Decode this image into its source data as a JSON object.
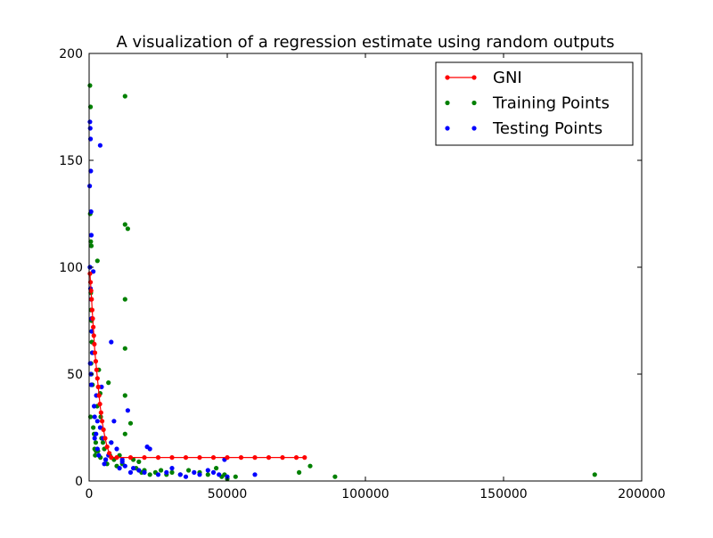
{
  "chart_data": {
    "type": "scatter",
    "title": "A visualization of a regression estimate using random outputs",
    "xlabel": "",
    "ylabel": "",
    "xlim": [
      0,
      200000
    ],
    "ylim": [
      0,
      200
    ],
    "x_ticks": [
      "0",
      "50000",
      "100000",
      "150000",
      "200000"
    ],
    "y_ticks": [
      "0",
      "50",
      "100",
      "150",
      "200"
    ],
    "grid": false,
    "legend_position": "top-right",
    "series": [
      {
        "name": "GNI",
        "style": "line-marker",
        "color": "#ff0000",
        "x": [
          300,
          500,
          700,
          900,
          1100,
          1300,
          1500,
          1700,
          1900,
          2100,
          2400,
          2700,
          3000,
          3300,
          3600,
          3900,
          4300,
          4700,
          5200,
          5800,
          6500,
          7300,
          8000,
          10000,
          15000,
          20000,
          25000,
          30000,
          35000,
          40000,
          45000,
          50000,
          55000,
          60000,
          65000,
          70000,
          75000,
          78000
        ],
        "y": [
          97,
          93,
          89,
          85,
          80,
          76,
          72,
          68,
          64,
          60,
          56,
          52,
          48,
          44,
          40,
          36,
          32,
          28,
          24,
          20,
          16,
          13,
          11,
          11,
          11,
          11,
          11,
          11,
          11,
          11,
          11,
          11,
          11,
          11,
          11,
          11,
          11,
          11
        ]
      },
      {
        "name": "Training Points",
        "style": "marker",
        "color": "#008000",
        "x": [
          300,
          500,
          400,
          600,
          800,
          700,
          900,
          1000,
          1100,
          800,
          500,
          1500,
          2000,
          2200,
          2500,
          3000,
          3500,
          4000,
          4200,
          4500,
          5000,
          5500,
          6000,
          6500,
          7000,
          7500,
          8000,
          9000,
          10000,
          11000,
          12000,
          13000,
          13000,
          13000,
          13000,
          13000,
          13000,
          14000,
          15000,
          16000,
          17000,
          18000,
          19000,
          20000,
          22000,
          24000,
          26000,
          28000,
          30000,
          33000,
          36000,
          40000,
          43000,
          46000,
          48000,
          49000,
          50000,
          53000,
          76000,
          80000,
          89000,
          183000,
          1200,
          1800,
          2400,
          3200,
          4100,
          600,
          900,
          300,
          700,
          2900
        ],
        "y": [
          185,
          175,
          125,
          112,
          110,
          80,
          75,
          65,
          60,
          50,
          30,
          25,
          15,
          12,
          14,
          103,
          52,
          41,
          30,
          20,
          18,
          15,
          10,
          8,
          46,
          12,
          18,
          10,
          7,
          12,
          8,
          180,
          120,
          85,
          62,
          40,
          22,
          118,
          27,
          10,
          6,
          9,
          4,
          5,
          3,
          4,
          5,
          3,
          4,
          3,
          5,
          4,
          3,
          6,
          2,
          3,
          1,
          2,
          4,
          7,
          2,
          3,
          45,
          22,
          18,
          14,
          11,
          88,
          70,
          100,
          55,
          35
        ]
      },
      {
        "name": "Testing Points",
        "style": "marker",
        "color": "#0000ff",
        "x": [
          300,
          400,
          500,
          600,
          700,
          800,
          200,
          300,
          500,
          700,
          900,
          1000,
          1200,
          400,
          600,
          800,
          1500,
          2000,
          2500,
          3000,
          3500,
          4000,
          4500,
          5000,
          5500,
          6000,
          7000,
          8000,
          9000,
          10000,
          11000,
          12000,
          13000,
          14000,
          15000,
          16000,
          18000,
          20000,
          22000,
          25000,
          28000,
          30000,
          33000,
          35000,
          38000,
          40000,
          43000,
          45000,
          47000,
          49000,
          50000,
          60000,
          4000,
          8000,
          12000,
          21000,
          2000,
          3000,
          1800,
          2600
        ],
        "y": [
          168,
          165,
          160,
          145,
          126,
          115,
          138,
          100,
          90,
          85,
          76,
          70,
          60,
          55,
          50,
          45,
          98,
          30,
          22,
          15,
          12,
          157,
          44,
          20,
          8,
          10,
          12,
          65,
          28,
          15,
          6,
          10,
          7,
          33,
          4,
          6,
          5,
          4,
          15,
          3,
          4,
          6,
          3,
          2,
          4,
          3,
          5,
          4,
          3,
          10,
          2,
          3,
          25,
          18,
          9,
          16,
          20,
          28,
          35,
          40
        ]
      }
    ]
  }
}
